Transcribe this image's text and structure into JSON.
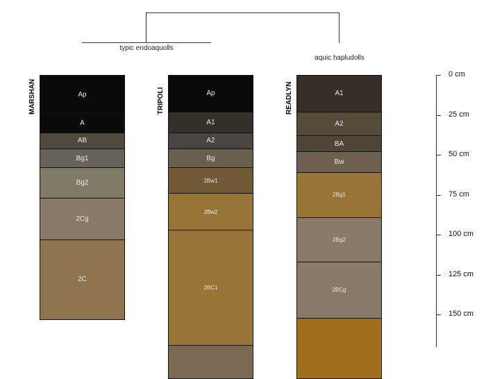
{
  "dendrogram": {
    "groups": [
      "typic endoaquolls",
      "aquic hapludolls"
    ]
  },
  "axis": {
    "unit": "cm",
    "ticks": [
      {
        "depth": 0,
        "label": "0 cm"
      },
      {
        "depth": 25,
        "label": "25 cm"
      },
      {
        "depth": 50,
        "label": "50 cm"
      },
      {
        "depth": 75,
        "label": "75 cm"
      },
      {
        "depth": 100,
        "label": "100 cm"
      },
      {
        "depth": 125,
        "label": "125 cm"
      },
      {
        "depth": 150,
        "label": "150 cm"
      }
    ]
  },
  "profiles": [
    {
      "name": "MARSHAN",
      "horizons": [
        {
          "name": "Ap",
          "top": 0,
          "bottom": 24,
          "color": "#0a0a0a"
        },
        {
          "name": "A",
          "top": 24,
          "bottom": 36,
          "color": "#0b0b0b"
        },
        {
          "name": "AB",
          "top": 36,
          "bottom": 46,
          "color": "#51493a"
        },
        {
          "name": "Bg1",
          "top": 46,
          "bottom": 58,
          "color": "#67635a"
        },
        {
          "name": "Bg2",
          "top": 58,
          "bottom": 77,
          "color": "#817a66"
        },
        {
          "name": "2Cg",
          "top": 77,
          "bottom": 103,
          "color": "#8a7a6a"
        },
        {
          "name": "2C",
          "top": 103,
          "bottom": 153,
          "color": "#8e744f"
        }
      ]
    },
    {
      "name": "TRIPOLI",
      "horizons": [
        {
          "name": "Ap",
          "top": 0,
          "bottom": 23,
          "color": "#0a0a0a"
        },
        {
          "name": "A1",
          "top": 23,
          "bottom": 36,
          "color": "#36302b"
        },
        {
          "name": "A2",
          "top": 36,
          "bottom": 46,
          "color": "#4a4540"
        },
        {
          "name": "Bg",
          "top": 46,
          "bottom": 58,
          "color": "#6a604e"
        },
        {
          "name": "2Bw1",
          "top": 58,
          "bottom": 74,
          "color": "#705a36"
        },
        {
          "name": "2Bw2",
          "top": 74,
          "bottom": 97,
          "color": "#987436"
        },
        {
          "name": "2BC1",
          "top": 97,
          "bottom": 169,
          "color": "#987436"
        },
        {
          "name": "",
          "top": 169,
          "bottom": 190,
          "color": "#7a6a55"
        }
      ]
    },
    {
      "name": "READLYN",
      "horizons": [
        {
          "name": "A1",
          "top": 0,
          "bottom": 23,
          "color": "#362f2a"
        },
        {
          "name": "A2",
          "top": 23,
          "bottom": 38,
          "color": "#564a3a"
        },
        {
          "name": "BA",
          "top": 38,
          "bottom": 48,
          "color": "#4f4639"
        },
        {
          "name": "Bw",
          "top": 48,
          "bottom": 61,
          "color": "#6e604e"
        },
        {
          "name": "2Bg1",
          "top": 61,
          "bottom": 89,
          "color": "#987436"
        },
        {
          "name": "2Bg2",
          "top": 89,
          "bottom": 117,
          "color": "#8a7a6a"
        },
        {
          "name": "2BCg",
          "top": 117,
          "bottom": 152,
          "color": "#8a7a6a"
        },
        {
          "name": "",
          "top": 152,
          "bottom": 190,
          "color": "#a0701e"
        }
      ]
    }
  ]
}
